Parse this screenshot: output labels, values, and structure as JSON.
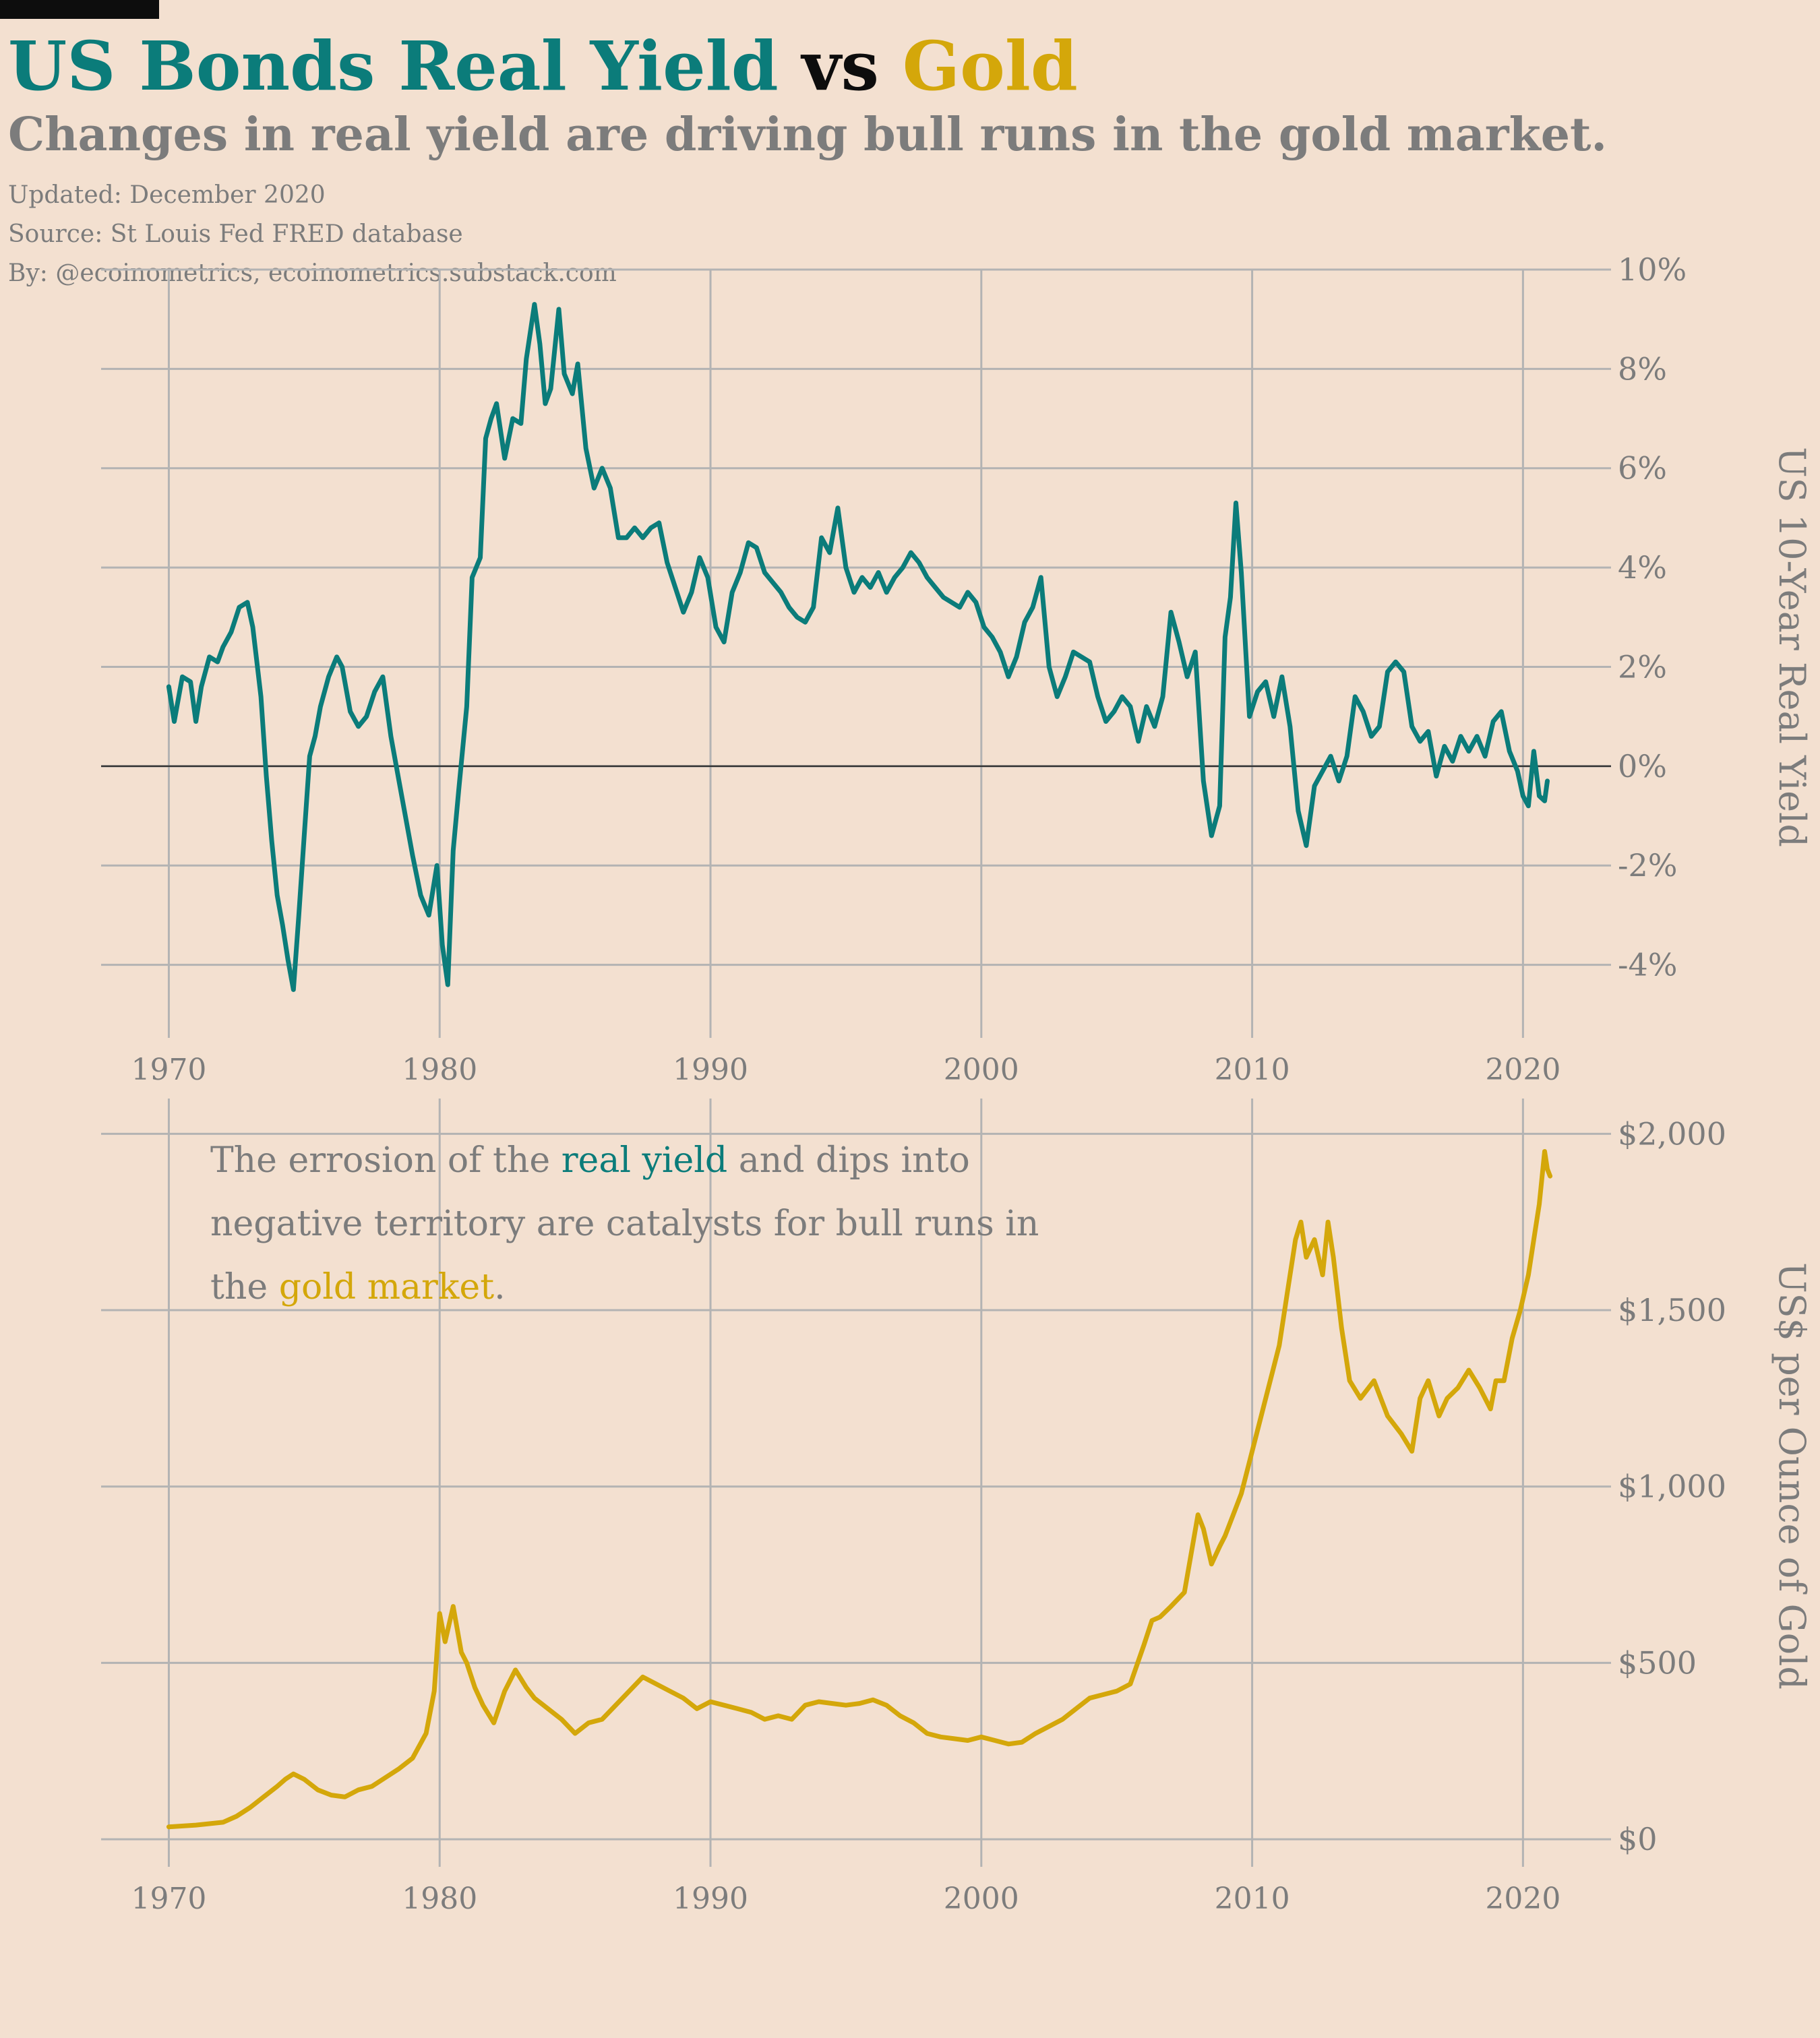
{
  "title": {
    "part1": "US Bonds Real Yield",
    "part2": "vs",
    "part3": "Gold"
  },
  "subtitle": "Changes in real yield are driving bull runs in the gold market.",
  "meta": {
    "updated": "Updated: December 2020",
    "source": "Source: St Louis Fed FRED database",
    "by": "By: @ecoinometrics, ecoinometrics.substack.com"
  },
  "annotation": {
    "part1": "The errosion of the ",
    "highlight1": "real yield",
    "part2": " and dips into negative territory are catalysts for bull runs in the ",
    "highlight2": "gold market",
    "part3": "."
  },
  "colors": {
    "background": "#f3e0d0",
    "teal": "#0b7c7a",
    "gold": "#d4a70a",
    "grid": "#b3b3b3",
    "text": "#7c7c7c"
  },
  "chart_data": [
    {
      "type": "line",
      "ylabel": "US 10-Year Real Yield",
      "xlim": [
        1967.5,
        2023.5
      ],
      "ylim": [
        -5.2,
        10
      ],
      "grid": true,
      "x_ticks": [
        1970,
        1980,
        1990,
        2000,
        2010,
        2020
      ],
      "x_tick_labels": [
        "1970",
        "1980",
        "1990",
        "2000",
        "2010",
        "2020"
      ],
      "y_ticks": [
        -4,
        -2,
        0,
        2,
        4,
        6,
        8,
        10
      ],
      "y_tick_labels": [
        "-4%",
        "-2%",
        "0%",
        "2%",
        "4%",
        "6%",
        "8%",
        "10%"
      ],
      "y_axis_side": "right",
      "zero_line": true,
      "series": [
        {
          "color": "#0b7c7a",
          "x": [
            1970.0,
            1970.2,
            1970.5,
            1970.8,
            1971.0,
            1971.2,
            1971.5,
            1971.8,
            1972.0,
            1972.3,
            1972.6,
            1972.9,
            1973.1,
            1973.4,
            1973.6,
            1973.8,
            1974.0,
            1974.2,
            1974.4,
            1974.6,
            1974.8,
            1975.0,
            1975.2,
            1975.4,
            1975.6,
            1975.9,
            1976.2,
            1976.4,
            1976.7,
            1977.0,
            1977.3,
            1977.6,
            1977.9,
            1978.2,
            1978.4,
            1978.7,
            1979.0,
            1979.3,
            1979.6,
            1979.9,
            1980.1,
            1980.3,
            1980.5,
            1980.7,
            1981.0,
            1981.2,
            1981.5,
            1981.7,
            1981.9,
            1982.1,
            1982.4,
            1982.7,
            1983.0,
            1983.2,
            1983.5,
            1983.7,
            1983.9,
            1984.1,
            1984.4,
            1984.6,
            1984.9,
            1985.1,
            1985.4,
            1985.7,
            1986.0,
            1986.3,
            1986.6,
            1986.9,
            1987.2,
            1987.5,
            1987.8,
            1988.1,
            1988.4,
            1988.7,
            1989.0,
            1989.3,
            1989.6,
            1989.9,
            1990.2,
            1990.5,
            1990.8,
            1991.1,
            1991.4,
            1991.7,
            1992.0,
            1992.3,
            1992.6,
            1992.9,
            1993.2,
            1993.5,
            1993.8,
            1994.1,
            1994.4,
            1994.7,
            1995.0,
            1995.3,
            1995.6,
            1995.9,
            1996.2,
            1996.5,
            1996.8,
            1997.1,
            1997.4,
            1997.7,
            1998.0,
            1998.3,
            1998.6,
            1998.9,
            1999.2,
            1999.5,
            1999.8,
            2000.1,
            2000.4,
            2000.7,
            2001.0,
            2001.3,
            2001.6,
            2001.9,
            2002.2,
            2002.5,
            2002.8,
            2003.1,
            2003.4,
            2003.7,
            2004.0,
            2004.3,
            2004.6,
            2004.9,
            2005.2,
            2005.5,
            2005.8,
            2006.1,
            2006.4,
            2006.7,
            2007.0,
            2007.3,
            2007.6,
            2007.9,
            2008.2,
            2008.5,
            2008.8,
            2009.0,
            2009.2,
            2009.4,
            2009.6,
            2009.9,
            2010.2,
            2010.5,
            2010.8,
            2011.1,
            2011.4,
            2011.7,
            2012.0,
            2012.3,
            2012.6,
            2012.9,
            2013.2,
            2013.5,
            2013.8,
            2014.1,
            2014.4,
            2014.7,
            2015.0,
            2015.3,
            2015.6,
            2015.9,
            2016.2,
            2016.5,
            2016.8,
            2017.1,
            2017.4,
            2017.7,
            2018.0,
            2018.3,
            2018.6,
            2018.9,
            2019.2,
            2019.5,
            2019.8,
            2020.0,
            2020.2,
            2020.4,
            2020.6,
            2020.8,
            2020.9
          ],
          "y": [
            1.6,
            0.9,
            1.8,
            1.7,
            0.9,
            1.6,
            2.2,
            2.1,
            2.4,
            2.7,
            3.2,
            3.3,
            2.8,
            1.4,
            -0.2,
            -1.5,
            -2.6,
            -3.2,
            -3.9,
            -4.5,
            -3.0,
            -1.4,
            0.2,
            0.6,
            1.2,
            1.8,
            2.2,
            2.0,
            1.1,
            0.8,
            1.0,
            1.5,
            1.8,
            0.6,
            0.0,
            -0.9,
            -1.8,
            -2.6,
            -3.0,
            -2.0,
            -3.6,
            -4.4,
            -1.7,
            -0.5,
            1.2,
            3.8,
            4.2,
            6.6,
            7.0,
            7.3,
            6.2,
            7.0,
            6.9,
            8.2,
            9.3,
            8.5,
            7.3,
            7.6,
            9.2,
            7.9,
            7.5,
            8.1,
            6.4,
            5.6,
            6.0,
            5.6,
            4.6,
            4.6,
            4.8,
            4.6,
            4.8,
            4.9,
            4.1,
            3.6,
            3.1,
            3.5,
            4.2,
            3.8,
            2.8,
            2.5,
            3.5,
            3.9,
            4.5,
            4.4,
            3.9,
            3.7,
            3.5,
            3.2,
            3.0,
            2.9,
            3.2,
            4.6,
            4.3,
            5.2,
            4.0,
            3.5,
            3.8,
            3.6,
            3.9,
            3.5,
            3.8,
            4.0,
            4.3,
            4.1,
            3.8,
            3.6,
            3.4,
            3.3,
            3.2,
            3.5,
            3.3,
            2.8,
            2.6,
            2.3,
            1.8,
            2.2,
            2.9,
            3.2,
            3.8,
            2.0,
            1.4,
            1.8,
            2.3,
            2.2,
            2.1,
            1.4,
            0.9,
            1.1,
            1.4,
            1.2,
            0.5,
            1.2,
            0.8,
            1.4,
            3.1,
            2.5,
            1.8,
            2.3,
            -0.3,
            -1.4,
            -0.8,
            2.6,
            3.4,
            5.3,
            3.9,
            1.0,
            1.5,
            1.7,
            1.0,
            1.8,
            0.8,
            -0.9,
            -1.6,
            -0.4,
            -0.1,
            0.2,
            -0.3,
            0.2,
            1.4,
            1.1,
            0.6,
            0.8,
            1.9,
            2.1,
            1.9,
            0.8,
            0.5,
            0.7,
            -0.2,
            0.4,
            0.1,
            0.6,
            0.3,
            0.6,
            0.2,
            0.9,
            1.1,
            0.3,
            -0.1,
            -0.6,
            -0.8,
            0.3,
            -0.6,
            -0.7,
            -0.3
          ]
        }
      ]
    },
    {
      "type": "line",
      "ylabel": "US$ per Ounce of Gold",
      "xlim": [
        1967.5,
        2023.5
      ],
      "ylim": [
        -40,
        2100
      ],
      "grid": true,
      "x_ticks": [
        1970,
        1980,
        1990,
        2000,
        2010,
        2020
      ],
      "x_tick_labels": [
        "1970",
        "1980",
        "1990",
        "2000",
        "2010",
        "2020"
      ],
      "y_ticks": [
        0,
        500,
        1000,
        1500,
        2000
      ],
      "y_tick_labels": [
        "$0",
        "$500",
        "$1,000",
        "$1,500",
        "$2,000"
      ],
      "y_axis_side": "right",
      "series": [
        {
          "color": "#d4a70a",
          "x": [
            1970.0,
            1971.0,
            1972.0,
            1972.5,
            1973.0,
            1973.5,
            1974.0,
            1974.3,
            1974.6,
            1975.0,
            1975.5,
            1976.0,
            1976.5,
            1977.0,
            1977.5,
            1978.0,
            1978.5,
            1979.0,
            1979.5,
            1979.8,
            1980.0,
            1980.2,
            1980.5,
            1980.8,
            1981.0,
            1981.3,
            1981.6,
            1982.0,
            1982.4,
            1982.8,
            1983.2,
            1983.5,
            1984.0,
            1984.5,
            1985.0,
            1985.5,
            1986.0,
            1986.5,
            1987.0,
            1987.5,
            1988.0,
            1988.5,
            1989.0,
            1989.5,
            1990.0,
            1990.5,
            1991.0,
            1991.5,
            1992.0,
            1992.5,
            1993.0,
            1993.5,
            1994.0,
            1994.5,
            1995.0,
            1995.5,
            1996.0,
            1996.5,
            1997.0,
            1997.5,
            1998.0,
            1998.5,
            1999.0,
            1999.5,
            2000.0,
            2000.5,
            2001.0,
            2001.5,
            2002.0,
            2002.5,
            2003.0,
            2003.5,
            2004.0,
            2004.5,
            2005.0,
            2005.5,
            2006.0,
            2006.3,
            2006.6,
            2007.0,
            2007.5,
            2008.0,
            2008.2,
            2008.5,
            2008.8,
            2009.0,
            2009.3,
            2009.6,
            2010.0,
            2010.5,
            2011.0,
            2011.3,
            2011.6,
            2011.8,
            2012.0,
            2012.3,
            2012.6,
            2012.8,
            2013.0,
            2013.3,
            2013.6,
            2014.0,
            2014.5,
            2015.0,
            2015.5,
            2015.9,
            2016.2,
            2016.5,
            2016.9,
            2017.2,
            2017.6,
            2018.0,
            2018.4,
            2018.8,
            2019.0,
            2019.3,
            2019.6,
            2019.9,
            2020.2,
            2020.4,
            2020.6,
            2020.8,
            2020.9,
            2021.0
          ],
          "y": [
            35,
            40,
            48,
            65,
            90,
            120,
            150,
            170,
            185,
            170,
            140,
            125,
            120,
            140,
            150,
            175,
            200,
            230,
            300,
            420,
            640,
            560,
            660,
            530,
            500,
            430,
            380,
            330,
            420,
            480,
            430,
            400,
            370,
            340,
            300,
            330,
            340,
            380,
            420,
            460,
            440,
            420,
            400,
            370,
            390,
            380,
            370,
            360,
            340,
            350,
            340,
            380,
            390,
            385,
            380,
            385,
            395,
            380,
            350,
            330,
            300,
            290,
            285,
            280,
            290,
            280,
            270,
            275,
            300,
            320,
            340,
            370,
            400,
            410,
            420,
            440,
            550,
            620,
            630,
            660,
            700,
            920,
            880,
            780,
            830,
            860,
            920,
            980,
            1100,
            1250,
            1400,
            1550,
            1700,
            1750,
            1650,
            1700,
            1600,
            1750,
            1650,
            1450,
            1300,
            1250,
            1300,
            1200,
            1150,
            1100,
            1250,
            1300,
            1200,
            1250,
            1280,
            1330,
            1280,
            1220,
            1300,
            1300,
            1420,
            1500,
            1600,
            1700,
            1800,
            1950,
            1900,
            1880
          ]
        }
      ]
    }
  ]
}
